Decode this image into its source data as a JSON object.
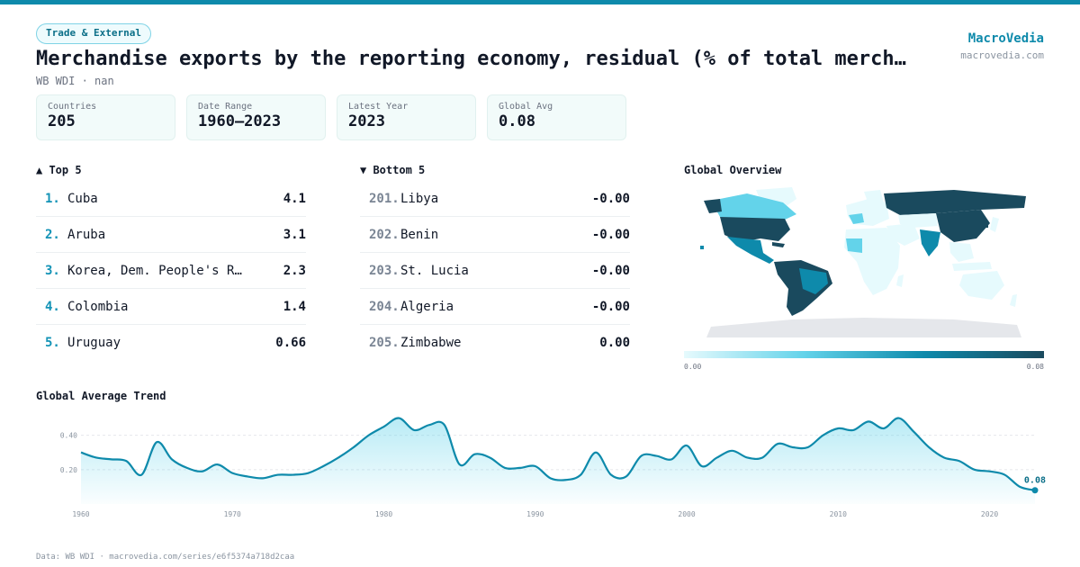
{
  "header": {
    "category": "Trade & External",
    "title": "Merchandise exports by the reporting economy, residual (% of total merch…",
    "subtitle": "WB WDI · nan",
    "brand_name": "MacroVedia",
    "brand_url": "macrovedia.com"
  },
  "stats": [
    {
      "label": "Countries",
      "value": "205"
    },
    {
      "label": "Date Range",
      "value": "1960–2023"
    },
    {
      "label": "Latest Year",
      "value": "2023"
    },
    {
      "label": "Global Avg",
      "value": "0.08"
    }
  ],
  "top5": {
    "title": "▲ Top 5",
    "items": [
      {
        "rank": "1.",
        "name": "Cuba",
        "value": "4.1"
      },
      {
        "rank": "2.",
        "name": "Aruba",
        "value": "3.1"
      },
      {
        "rank": "3.",
        "name": "Korea, Dem. People's Rep.",
        "value": "2.3"
      },
      {
        "rank": "4.",
        "name": "Colombia",
        "value": "1.4"
      },
      {
        "rank": "5.",
        "name": "Uruguay",
        "value": "0.66"
      }
    ]
  },
  "bottom5": {
    "title": "▼ Bottom 5",
    "items": [
      {
        "rank": "201.",
        "name": "Libya",
        "value": "-0.00"
      },
      {
        "rank": "202.",
        "name": "Benin",
        "value": "-0.00"
      },
      {
        "rank": "203.",
        "name": "St. Lucia",
        "value": "-0.00"
      },
      {
        "rank": "204.",
        "name": "Algeria",
        "value": "-0.00"
      },
      {
        "rank": "205.",
        "name": "Zimbabwe",
        "value": "0.00"
      }
    ]
  },
  "map": {
    "title": "Global Overview",
    "legend_min": "0.00",
    "legend_max": "0.08",
    "colors": {
      "low": "#e6fafd",
      "mid": "#63d3ea",
      "high": "#0e8aab",
      "max": "#1a4a5e",
      "nodata": "#e5e7eb"
    }
  },
  "trend": {
    "title": "Global Average Trend",
    "last_label": "0.08"
  },
  "chart_data": {
    "type": "area",
    "title": "Global Average Trend",
    "x": [
      1960,
      1961,
      1962,
      1963,
      1964,
      1965,
      1966,
      1967,
      1968,
      1969,
      1970,
      1971,
      1972,
      1973,
      1974,
      1975,
      1976,
      1977,
      1978,
      1979,
      1980,
      1981,
      1982,
      1983,
      1984,
      1985,
      1986,
      1987,
      1988,
      1989,
      1990,
      1991,
      1992,
      1993,
      1994,
      1995,
      1996,
      1997,
      1998,
      1999,
      2000,
      2001,
      2002,
      2003,
      2004,
      2005,
      2006,
      2007,
      2008,
      2009,
      2010,
      2011,
      2012,
      2013,
      2014,
      2015,
      2016,
      2017,
      2018,
      2019,
      2020,
      2021,
      2022,
      2023
    ],
    "values": [
      0.3,
      0.27,
      0.26,
      0.25,
      0.17,
      0.36,
      0.26,
      0.21,
      0.19,
      0.23,
      0.18,
      0.16,
      0.15,
      0.17,
      0.17,
      0.18,
      0.22,
      0.27,
      0.33,
      0.4,
      0.45,
      0.5,
      0.43,
      0.46,
      0.46,
      0.23,
      0.29,
      0.27,
      0.21,
      0.21,
      0.22,
      0.15,
      0.14,
      0.17,
      0.3,
      0.17,
      0.16,
      0.28,
      0.28,
      0.26,
      0.34,
      0.22,
      0.27,
      0.31,
      0.27,
      0.27,
      0.35,
      0.33,
      0.33,
      0.4,
      0.44,
      0.43,
      0.48,
      0.44,
      0.5,
      0.42,
      0.33,
      0.27,
      0.25,
      0.2,
      0.19,
      0.17,
      0.1,
      0.08
    ],
    "yticks": [
      0.2,
      0.4
    ],
    "ytick_labels": [
      "0.20",
      "0.40"
    ],
    "xticks": [
      1960,
      1970,
      1980,
      1990,
      2000,
      2010,
      2020
    ],
    "xtick_labels": [
      "1960",
      "1970",
      "1980",
      "1990",
      "2000",
      "2010",
      "2020"
    ],
    "ylim": [
      0.0,
      0.55
    ],
    "xlim": [
      1960,
      2023
    ],
    "grid": true,
    "color": "#0e8aab"
  },
  "footer": "Data: WB WDI · macrovedia.com/series/e6f5374a718d2caa"
}
